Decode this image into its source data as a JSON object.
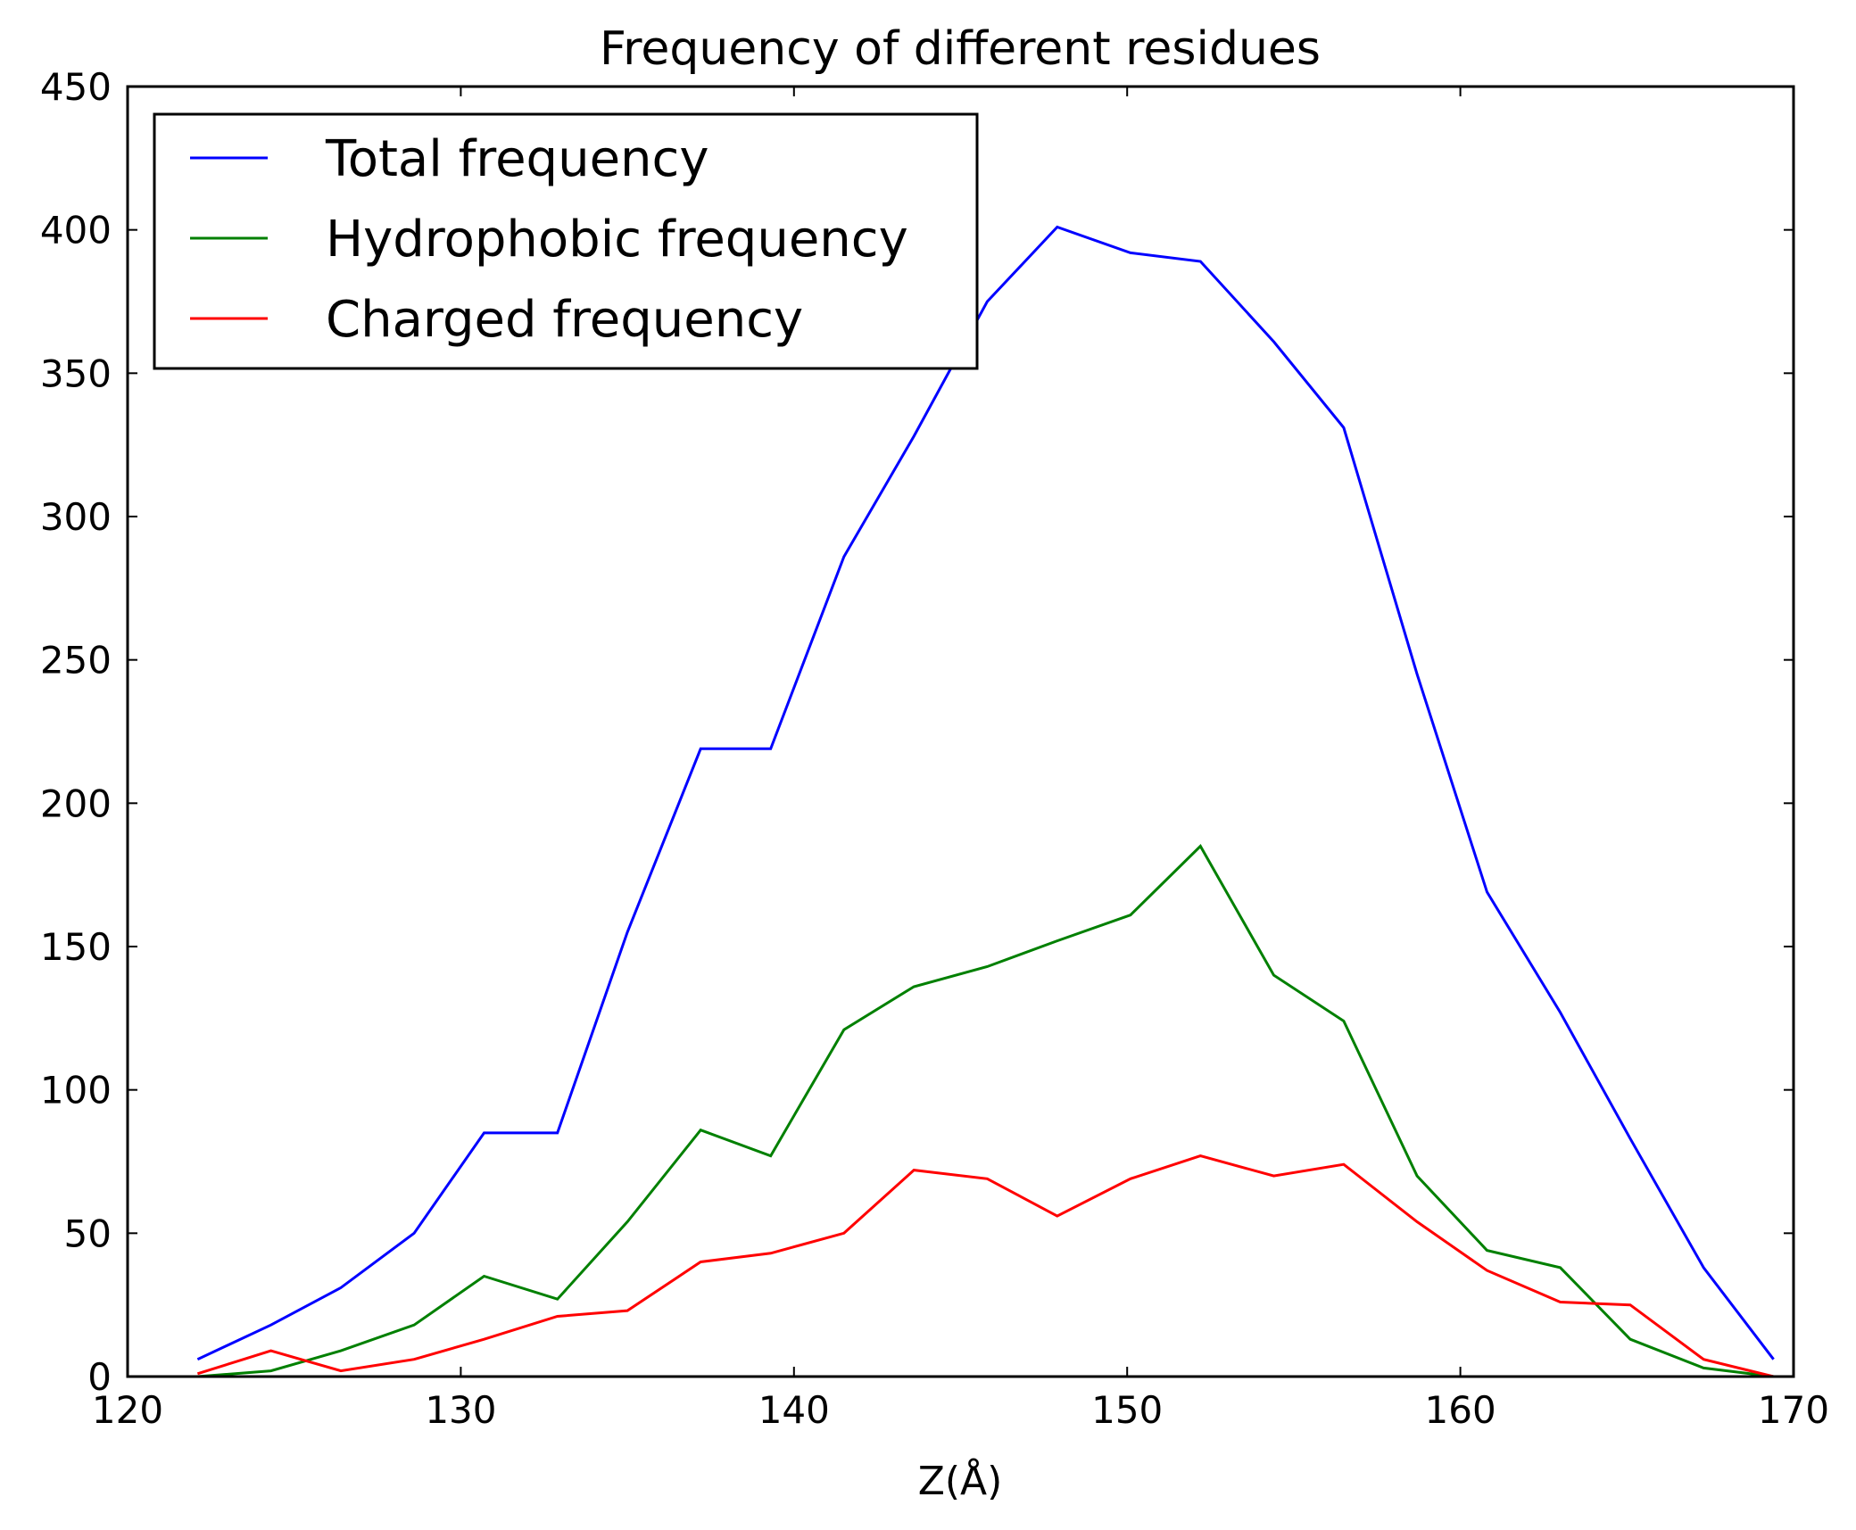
{
  "chart_data": {
    "type": "line",
    "title": "Frequency of different residues",
    "xlabel": "Z(Å)",
    "ylabel": "",
    "xlim": [
      120,
      170
    ],
    "ylim": [
      0,
      450
    ],
    "xticks": [
      120,
      130,
      140,
      150,
      160,
      170
    ],
    "yticks": [
      0,
      50,
      100,
      150,
      200,
      250,
      300,
      350,
      400,
      450
    ],
    "grid": false,
    "legend_position": "upper-left",
    "x": [
      122.1,
      124.3,
      126.4,
      128.6,
      130.7,
      132.9,
      135.0,
      137.2,
      139.3,
      141.5,
      143.6,
      145.8,
      147.9,
      150.1,
      152.2,
      154.4,
      156.5,
      158.7,
      160.8,
      163.0,
      165.1,
      167.3,
      169.4
    ],
    "series": [
      {
        "name": "Total frequency",
        "color": "#0000ff",
        "values": [
          6,
          18,
          31,
          50,
          85,
          85,
          155,
          219,
          219,
          286,
          328,
          375,
          401,
          392,
          389,
          361,
          331,
          245,
          169,
          127,
          83,
          38,
          6
        ]
      },
      {
        "name": "Hydrophobic frequency",
        "color": "#008000",
        "values": [
          0,
          2,
          9,
          18,
          35,
          27,
          54,
          86,
          77,
          121,
          136,
          143,
          152,
          161,
          185,
          140,
          124,
          70,
          44,
          38,
          13,
          3,
          0
        ]
      },
      {
        "name": "Charged frequency",
        "color": "#ff0000",
        "values": [
          1,
          9,
          2,
          6,
          13,
          21,
          23,
          40,
          43,
          50,
          72,
          69,
          56,
          69,
          77,
          70,
          74,
          54,
          37,
          26,
          25,
          6,
          0
        ]
      }
    ]
  }
}
